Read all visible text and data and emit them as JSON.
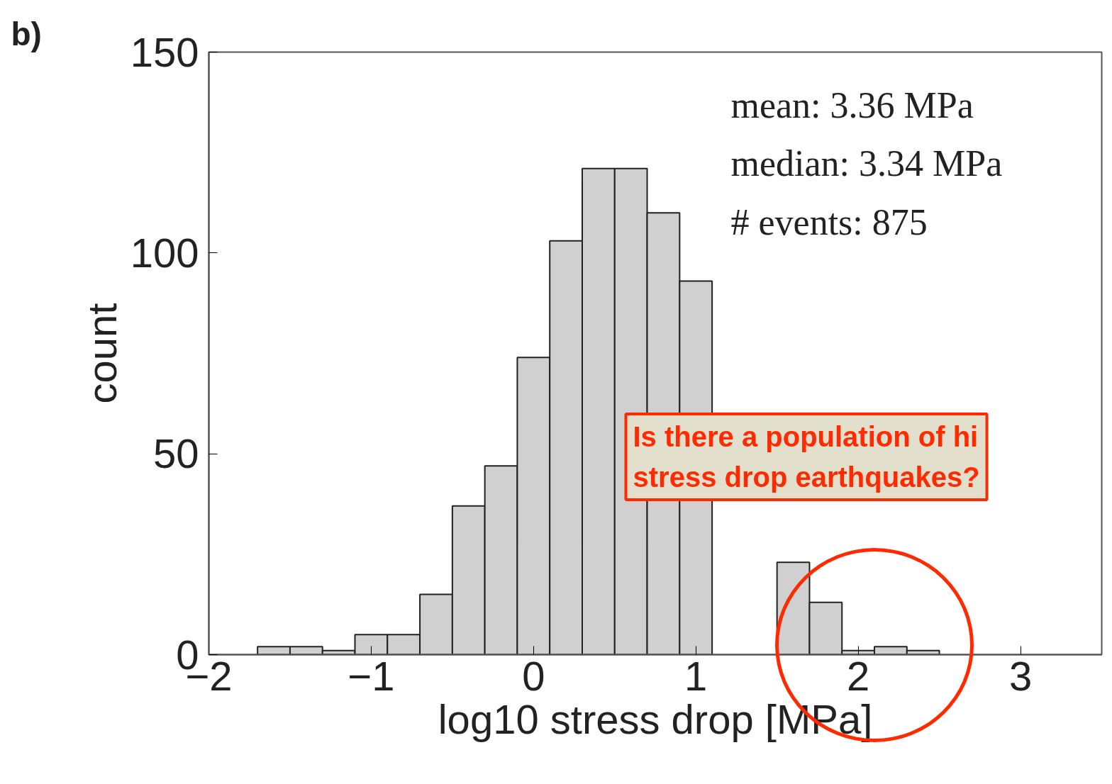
{
  "chart_data": {
    "type": "histogram",
    "xlabel": "log10 stress drop [MPa]",
    "ylabel": "count",
    "bins": [
      -1.7,
      -1.5,
      -1.3,
      -1.1,
      -0.9,
      -0.7,
      -0.5,
      -0.3,
      -0.1,
      0.1,
      0.3,
      0.5,
      0.7,
      0.9,
      1.1,
      1.3,
      1.5,
      1.7,
      1.9,
      2.1,
      2.3,
      2.5
    ],
    "values": [
      2,
      2,
      1,
      5,
      5,
      15,
      37,
      47,
      74,
      103,
      121,
      121,
      110,
      93,
      null,
      null,
      23,
      13,
      1,
      2,
      1
    ],
    "color": "#d0d0d0",
    "xlim": [
      -2,
      3.5
    ],
    "xticks": [
      {
        "value": -2,
        "label": "−2"
      },
      {
        "value": -1,
        "label": "−1"
      },
      0,
      1,
      2,
      3
    ],
    "ylim": [
      0,
      150
    ],
    "yticks": [
      0,
      50,
      100,
      150
    ],
    "grid": false,
    "annotations": [
      "b)",
      "mean: 3.36 MPa",
      "median: 3.34 MPa",
      "# events: 875",
      "Is there a population of hi\nstress drop earthquakes?"
    ]
  }
}
